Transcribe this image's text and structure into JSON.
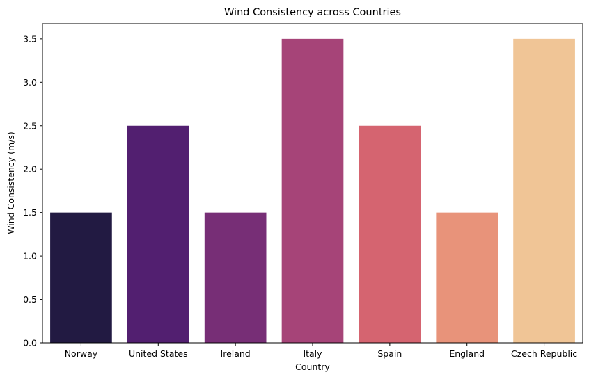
{
  "chart_data": {
    "type": "bar",
    "title": "Wind Consistency across Countries",
    "xlabel": "Country",
    "ylabel": "Wind Consistency (m/s)",
    "categories": [
      "Norway",
      "United States",
      "Ireland",
      "Italy",
      "Spain",
      "England",
      "Czech Republic"
    ],
    "values": [
      1.5,
      2.5,
      1.5,
      3.5,
      2.5,
      1.5,
      3.5
    ],
    "colors": [
      "#221a42",
      "#521f70",
      "#772e76",
      "#a64478",
      "#d56470",
      "#e8937a",
      "#f0c596"
    ],
    "ylim": [
      0,
      3.675
    ],
    "yticks": [
      "0.0",
      "0.5",
      "1.0",
      "1.5",
      "2.0",
      "2.5",
      "3.0",
      "3.5"
    ],
    "grid": false,
    "legend": "none"
  }
}
